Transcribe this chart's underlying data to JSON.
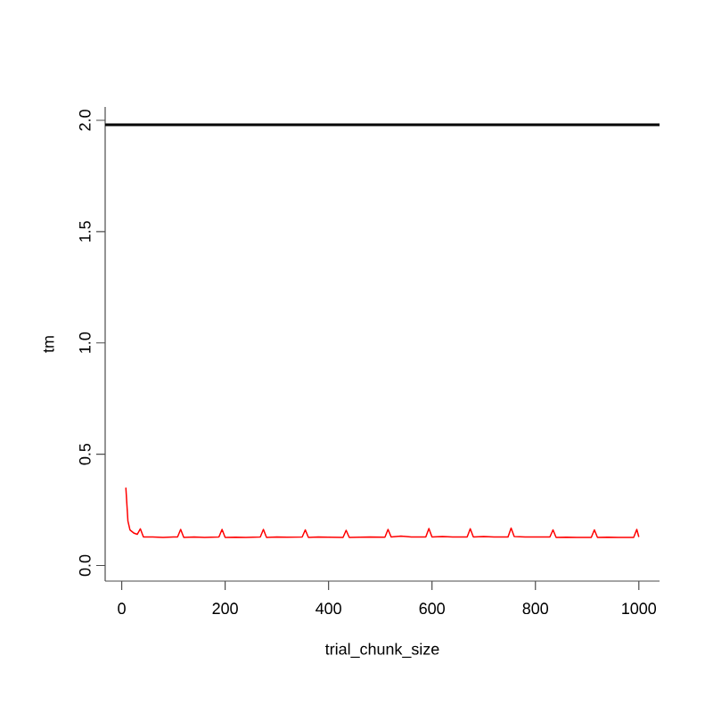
{
  "chart_data": {
    "type": "line",
    "xlabel": "trial_chunk_size",
    "ylabel": "tm",
    "xlim": [
      -32,
      1040
    ],
    "ylim": [
      -0.07,
      2.06
    ],
    "xticks": [
      0,
      200,
      400,
      600,
      800,
      1000
    ],
    "yticks": [
      {
        "value": 0,
        "label": "0.0"
      },
      {
        "value": 0.5,
        "label": "0.5"
      },
      {
        "value": 1,
        "label": "1.0"
      },
      {
        "value": 1.5,
        "label": "1.5"
      },
      {
        "value": 2,
        "label": "2.0"
      }
    ],
    "ref_lines": [
      {
        "axis": "y",
        "value": 1.98,
        "color": "#000000"
      }
    ],
    "series": [
      {
        "color": "#ff0000",
        "x": [
          8,
          12,
          16,
          24,
          30,
          36,
          42,
          60,
          80,
          100,
          108,
          114,
          120,
          140,
          160,
          188,
          194,
          200,
          220,
          240,
          268,
          274,
          280,
          300,
          320,
          349,
          355,
          361,
          380,
          400,
          428,
          434,
          440,
          460,
          480,
          509,
          515,
          521,
          540,
          560,
          588,
          594,
          600,
          620,
          640,
          668,
          674,
          680,
          700,
          720,
          747,
          753,
          759,
          780,
          800,
          828,
          834,
          840,
          860,
          880,
          908,
          914,
          920,
          940,
          960,
          990,
          996,
          1000
        ],
        "values": [
          0.35,
          0.2,
          0.16,
          0.145,
          0.14,
          0.165,
          0.128,
          0.128,
          0.126,
          0.128,
          0.128,
          0.162,
          0.126,
          0.128,
          0.126,
          0.128,
          0.162,
          0.126,
          0.127,
          0.126,
          0.128,
          0.162,
          0.126,
          0.128,
          0.127,
          0.128,
          0.16,
          0.126,
          0.128,
          0.127,
          0.126,
          0.158,
          0.126,
          0.127,
          0.128,
          0.127,
          0.162,
          0.128,
          0.132,
          0.128,
          0.128,
          0.166,
          0.128,
          0.13,
          0.128,
          0.128,
          0.165,
          0.128,
          0.13,
          0.128,
          0.128,
          0.168,
          0.13,
          0.128,
          0.128,
          0.128,
          0.16,
          0.126,
          0.127,
          0.126,
          0.126,
          0.16,
          0.126,
          0.127,
          0.126,
          0.126,
          0.162,
          0.128
        ]
      }
    ]
  }
}
